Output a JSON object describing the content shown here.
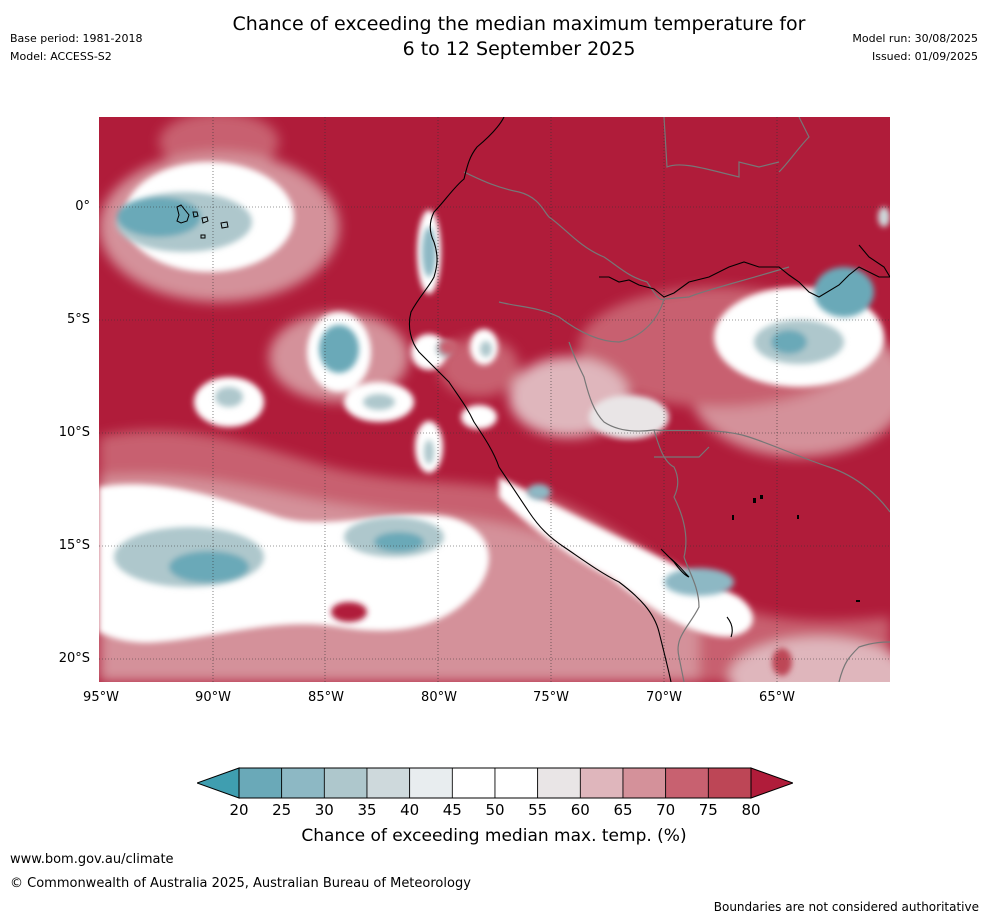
{
  "title_line1": "Chance of exceeding the median maximum temperature for",
  "title_line2": "6 to 12 September 2025",
  "base_period": "Base period: 1981-2018",
  "model": "Model: ACCESS-S2",
  "model_run": "Model run: 30/08/2025",
  "issued": "Issued: 01/09/2025",
  "lat_labels": [
    "0°",
    "5°S",
    "10°S",
    "15°S",
    "20°S"
  ],
  "lon_labels": [
    "95°W",
    "90°W",
    "85°W",
    "80°W",
    "75°W",
    "70°W",
    "65°W"
  ],
  "colorbar": {
    "ticks": [
      "20",
      "25",
      "30",
      "35",
      "40",
      "45",
      "50",
      "55",
      "60",
      "65",
      "70",
      "75",
      "80"
    ],
    "colors": [
      "#3f9eb0",
      "#6aa9b8",
      "#8db8c4",
      "#aec7cc",
      "#ced9dc",
      "#e8edef",
      "#ffffff",
      "#ffffff",
      "#e9e5e6",
      "#dfb6bc",
      "#d4919a",
      "#c86170",
      "#bd4656",
      "#b01c3a"
    ],
    "label": "Chance of exceeding median max. temp. (%)"
  },
  "footer_url": "www.bom.gov.au/climate",
  "copyright": "© Commonwealth of Australia 2025, Australian Bureau of Meteorology",
  "disclaimer": "Boundaries are not considered authoritative"
}
